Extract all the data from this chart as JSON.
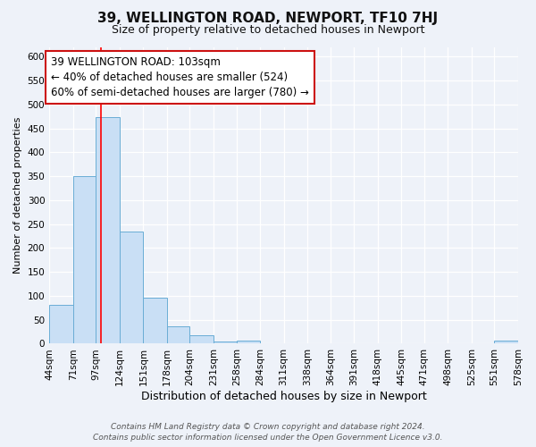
{
  "title": "39, WELLINGTON ROAD, NEWPORT, TF10 7HJ",
  "subtitle": "Size of property relative to detached houses in Newport",
  "xlabel": "Distribution of detached houses by size in Newport",
  "ylabel": "Number of detached properties",
  "bar_color": "#c9dff5",
  "bar_edge_color": "#6aadd5",
  "background_color": "#eef2f9",
  "grid_color": "#ffffff",
  "red_line_x": 103,
  "ann_line1": "39 WELLINGTON ROAD: 103sqm",
  "ann_line2": "← 40% of detached houses are smaller (524)",
  "ann_line3": "60% of semi-detached houses are larger (780) →",
  "annotation_fontsize": 8.5,
  "footer_line1": "Contains HM Land Registry data © Crown copyright and database right 2024.",
  "footer_line2": "Contains public sector information licensed under the Open Government Licence v3.0.",
  "bin_edges": [
    44,
    71,
    97,
    124,
    151,
    178,
    204,
    231,
    258,
    284,
    311,
    338,
    364,
    391,
    418,
    445,
    471,
    498,
    525,
    551,
    578
  ],
  "bin_counts": [
    82,
    350,
    474,
    235,
    97,
    37,
    18,
    5,
    7,
    0,
    0,
    0,
    0,
    0,
    0,
    0,
    0,
    0,
    0,
    6
  ],
  "ylim": [
    0,
    620
  ],
  "xlim": [
    44,
    578
  ],
  "yticks": [
    0,
    50,
    100,
    150,
    200,
    250,
    300,
    350,
    400,
    450,
    500,
    550,
    600
  ],
  "title_fontsize": 11,
  "subtitle_fontsize": 9,
  "xlabel_fontsize": 9,
  "ylabel_fontsize": 8,
  "tick_fontsize": 7.5,
  "footer_fontsize": 6.5
}
